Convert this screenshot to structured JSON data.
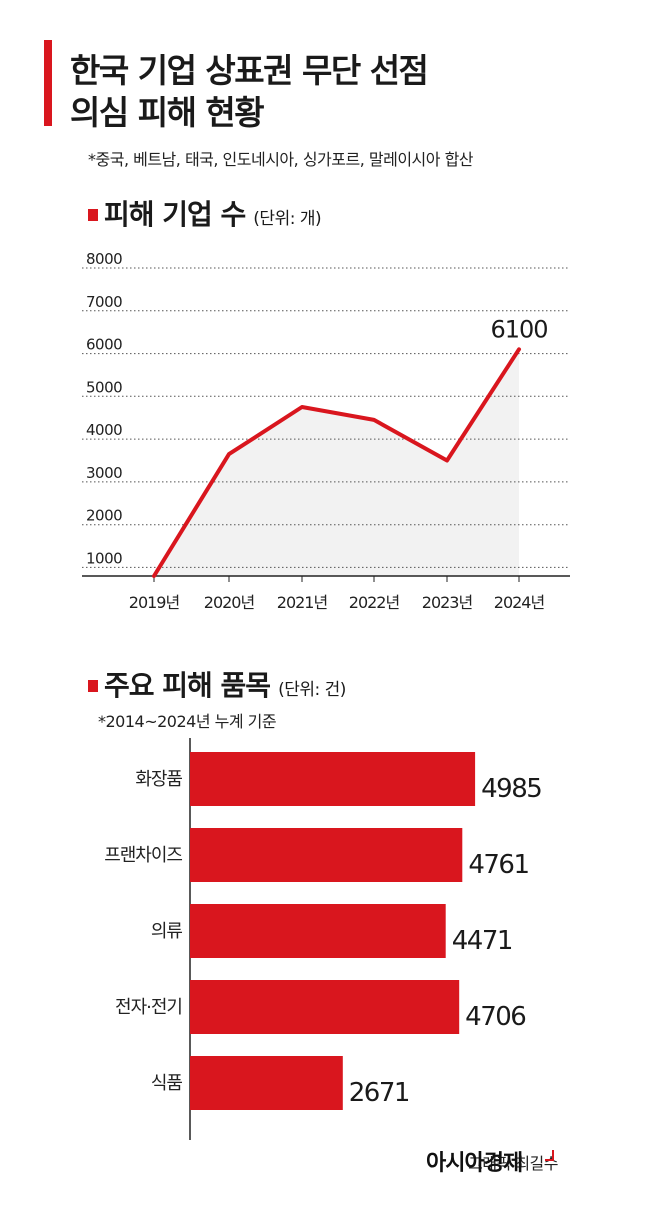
{
  "header": {
    "title_line1": "한국 기업 상표권 무단 선점",
    "title_line2": "의심 피해 현황",
    "note": "*중국, 베트남, 태국, 인도네시아, 싱가포르, 말레이시아 합산"
  },
  "line_section": {
    "title": "피해 기업 수",
    "unit": "(단위: 개)"
  },
  "bar_section": {
    "title": "주요 피해 품목",
    "unit": "(단위: 건)",
    "note": "*2014~2024년 누계 기준"
  },
  "credit": {
    "text": "그래픽 최길수",
    "brand": "아시아경제"
  },
  "colors": {
    "accent": "#d9161e",
    "area_fill": "#f2f2f2",
    "text": "#1a1a1a"
  },
  "chart_data": [
    {
      "type": "line",
      "title": "피해 기업 수",
      "unit": "(단위: 개)",
      "x": [
        "2019년",
        "2020년",
        "2021년",
        "2022년",
        "2023년",
        "2024년"
      ],
      "series": [
        {
          "values": [
            800,
            3650,
            4750,
            4450,
            3500,
            6100
          ]
        }
      ],
      "labeled_points": [
        {
          "index": 5,
          "label": "6100"
        }
      ],
      "y_ticks": [
        "1000",
        "2000",
        "3000",
        "4000",
        "5000",
        "6000",
        "7000",
        "8000"
      ],
      "ylim": [
        800,
        8000
      ],
      "grid": true
    },
    {
      "type": "bar",
      "orientation": "horizontal",
      "title": "주요 피해 품목",
      "unit": "(단위: 건)",
      "categories": [
        "화장품",
        "프랜차이즈",
        "의류",
        "전자·전기",
        "식품"
      ],
      "values": [
        4985,
        4761,
        4471,
        4706,
        2671
      ],
      "value_labels": [
        "4985",
        "4761",
        "4471",
        "4706",
        "2671"
      ]
    }
  ]
}
